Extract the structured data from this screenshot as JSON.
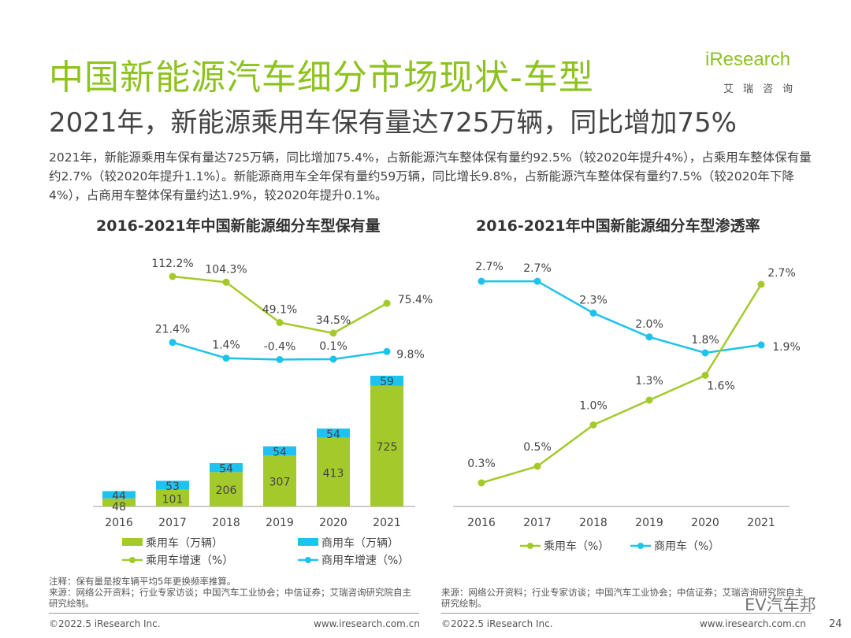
{
  "header": {
    "title": "中国新能源汽车细分市场现状-车型",
    "subtitle": "2021年，新能源乘用车保有量达725万辆，同比增加75%",
    "logo": "iResearch",
    "logo_sub": "艾瑞咨询"
  },
  "paragraph": "2021年，新能源乘用车保有量达725万辆，同比增加75.4%，占新能源汽车整体保有量约92.5%（较2020年提升4%），占乘用车整体保有量约2.7%（较2020年提升1.1%）。新能源商用车全年保有量约59万辆，同比增长9.8%，占新能源汽车整体保有量约7.5%（较2020年下降4%），占商用车整体保有量约达1.9%，较2020年提升0.1%。",
  "colors": {
    "green": "#a4c92b",
    "blue": "#1cc3ee",
    "title_green": "#8dc21f"
  },
  "chart_data": [
    {
      "type": "bar+line",
      "title": "2016-2021年中国新能源细分车型保有量",
      "categories": [
        "2016",
        "2017",
        "2018",
        "2019",
        "2020",
        "2021"
      ],
      "series": [
        {
          "name": "乘用车（万辆）",
          "kind": "stacked-bar",
          "values": [
            48,
            101,
            206,
            307,
            413,
            725
          ]
        },
        {
          "name": "商用车（万辆）",
          "kind": "stacked-bar",
          "values": [
            44,
            53,
            54,
            54,
            54,
            59
          ]
        },
        {
          "name": "乘用车增速（%）",
          "kind": "line",
          "values": [
            null,
            112.2,
            104.3,
            49.1,
            34.5,
            75.4
          ],
          "labels": [
            "",
            "112.2%",
            "104.3%",
            "49.1%",
            "34.5%",
            "75.4%"
          ]
        },
        {
          "name": "商用车增速（%）",
          "kind": "line",
          "values": [
            null,
            21.4,
            1.4,
            -0.4,
            0.1,
            9.8
          ],
          "labels": [
            "",
            "21.4%",
            "1.4%",
            "-0.4%",
            "0.1%",
            "9.8%"
          ]
        }
      ]
    },
    {
      "type": "line",
      "title": "2016-2021年中国新能源细分车型渗透率",
      "categories": [
        "2016",
        "2017",
        "2018",
        "2019",
        "2020",
        "2021"
      ],
      "series": [
        {
          "name": "乘用车（%）",
          "values": [
            0.3,
            0.5,
            1.0,
            1.3,
            1.6,
            2.7
          ],
          "labels": [
            "0.3%",
            "0.5%",
            "1.0%",
            "1.3%",
            "1.6%",
            "2.7%"
          ]
        },
        {
          "name": "商用车（%）",
          "values": [
            2.7,
            2.7,
            2.3,
            2.0,
            1.8,
            1.9
          ],
          "labels": [
            "2.7%",
            "2.7%",
            "2.3%",
            "2.0%",
            "1.8%",
            "1.9%"
          ]
        }
      ]
    }
  ],
  "notes": {
    "left_note": "注释：保有量是按车辆平均5年更换频率推算。",
    "left_source": "来源：网络公开资料；行业专家访谈；中国汽车工业协会；中信证券；艾瑞咨询研究院自主研究绘制。",
    "right_source": "来源：网络公开资料；行业专家访谈；中国汽车工业协会；中信证券；艾瑞咨询研究院自主研究绘制。"
  },
  "footer": {
    "copyright": "©2022.5 iResearch Inc.",
    "url": "www.iresearch.com.cn",
    "page": "24",
    "watermark": "EV汽车邦"
  }
}
